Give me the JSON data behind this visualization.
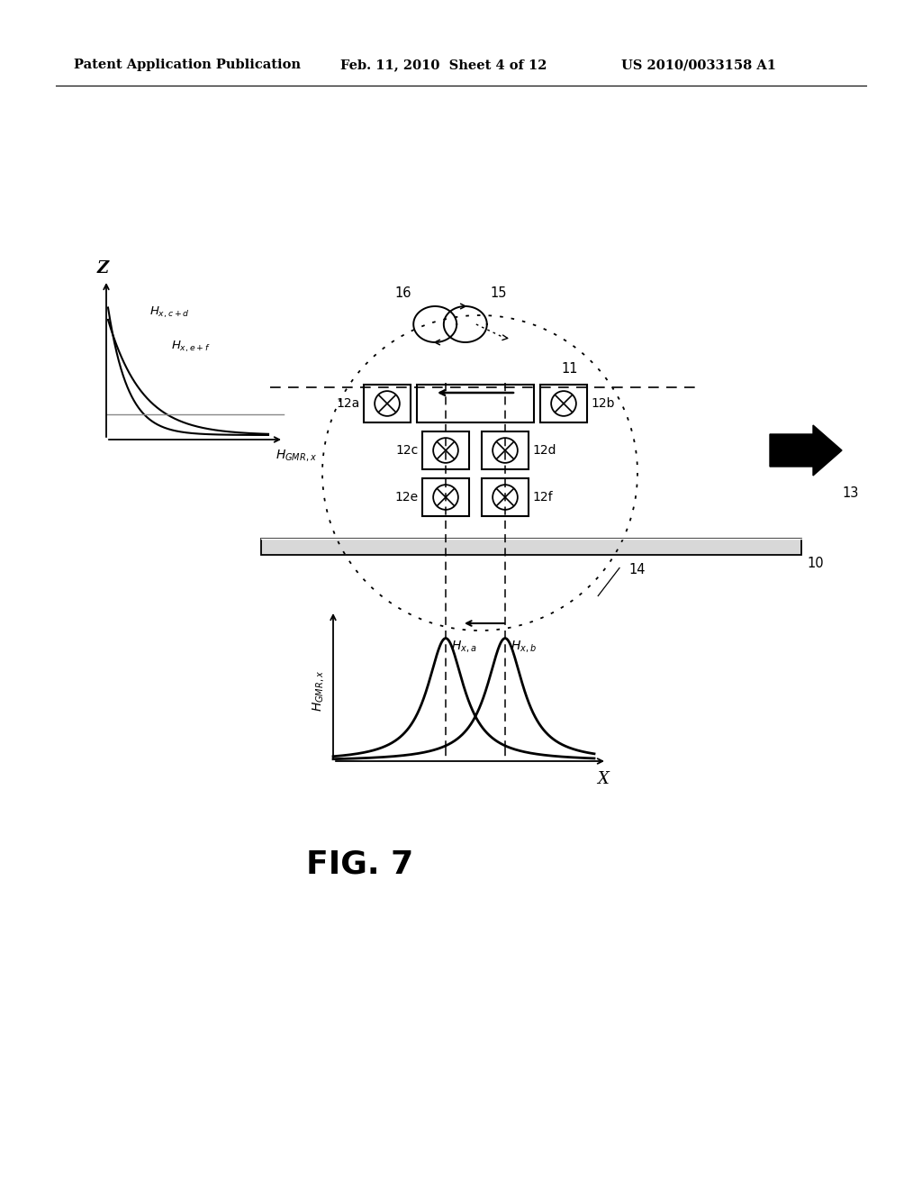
{
  "bg_color": "#ffffff",
  "header_left": "Patent Application Publication",
  "header_mid": "Feb. 11, 2010  Sheet 4 of 12",
  "header_right": "US 2010/0033158 A1",
  "fig_label": "FIG. 7"
}
